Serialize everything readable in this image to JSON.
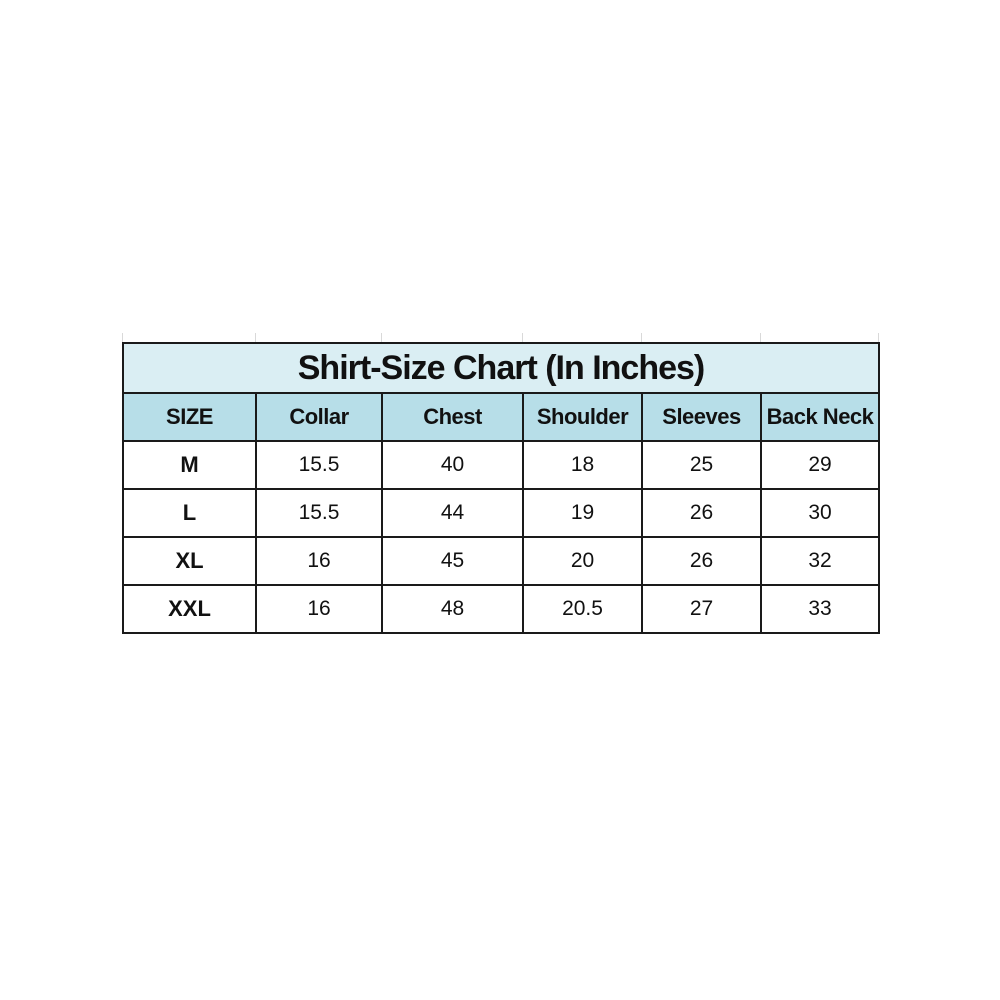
{
  "title": "Shirt-Size Chart (In Inches)",
  "colors": {
    "title_bg": "#daeef3",
    "header_bg": "#b7dee8",
    "border": "#1a1a1a"
  },
  "headers": [
    "SIZE",
    "Collar",
    "Chest",
    "Shoulder",
    "Sleeves",
    "Back Neck"
  ],
  "rows": [
    [
      "M",
      "15.5",
      "40",
      "18",
      "25",
      "29"
    ],
    [
      "L",
      "15.5",
      "44",
      "19",
      "26",
      "30"
    ],
    [
      "XL",
      "16",
      "45",
      "20",
      "26",
      "32"
    ],
    [
      "XXL",
      "16",
      "48",
      "20.5",
      "27",
      "33"
    ]
  ]
}
